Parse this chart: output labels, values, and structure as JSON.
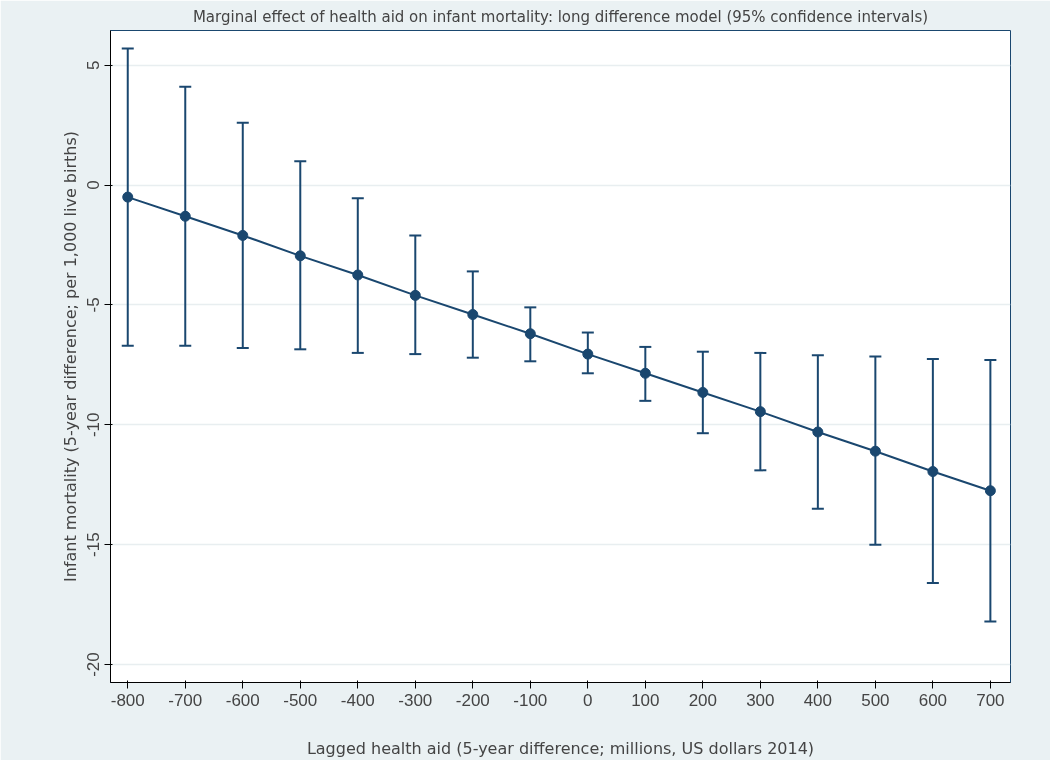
{
  "chart_data": {
    "type": "line",
    "title": "Marginal effect of health aid on infant mortality: long difference model (95% confidence intervals)",
    "xlabel": "Lagged health aid (5-year difference; millions, US dollars 2014)",
    "ylabel": "Infant mortality (5-year difference; per 1,000 live births)",
    "x": [
      -800,
      -700,
      -600,
      -500,
      -400,
      -300,
      -200,
      -100,
      0,
      100,
      200,
      300,
      400,
      500,
      600,
      700
    ],
    "series": [
      {
        "color": "#1a476f",
        "values": [
          -0.5,
          -1.3,
          -2.1,
          -2.95,
          -3.75,
          -4.6,
          -5.4,
          -6.2,
          -7.05,
          -7.85,
          -8.65,
          -9.45,
          -10.3,
          -11.1,
          -11.95,
          -12.75
        ],
        "errors": [
          [
            -6.7,
            5.7
          ],
          [
            -6.7,
            4.1
          ],
          [
            -6.8,
            2.6
          ],
          [
            -6.85,
            1.0
          ],
          [
            -7.0,
            -0.55
          ],
          [
            -7.05,
            -2.1
          ],
          [
            -7.2,
            -3.6
          ],
          [
            -7.35,
            -5.1
          ],
          [
            -7.85,
            -6.15
          ],
          [
            -9.0,
            -6.75
          ],
          [
            -10.35,
            -6.95
          ],
          [
            -11.9,
            -7.0
          ],
          [
            -13.5,
            -7.1
          ],
          [
            -15.0,
            -7.15
          ],
          [
            -16.6,
            -7.25
          ],
          [
            -18.2,
            -7.3
          ]
        ]
      }
    ],
    "marker": "circle",
    "line_style": "solid",
    "xlim": [
      -830,
      735
    ],
    "xticks": [
      -800,
      -700,
      -600,
      -500,
      -400,
      -300,
      -200,
      -100,
      0,
      100,
      200,
      300,
      400,
      500,
      600,
      700
    ],
    "ylim": [
      -20.75,
      6.45
    ],
    "yticks": [
      -20,
      -15,
      -10,
      -5,
      0,
      5
    ],
    "grid": "y"
  }
}
